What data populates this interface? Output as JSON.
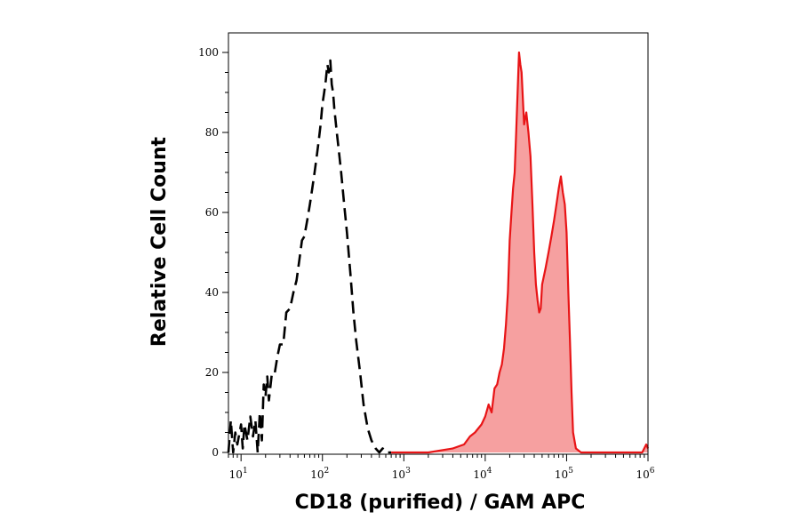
{
  "chart_data": {
    "type": "area",
    "xlabel": "CD18 (purified) / GAM APC",
    "ylabel": "Relative Cell Count",
    "x_scale": "log",
    "xlim": [
      7,
      1000000
    ],
    "ylim": [
      0,
      102
    ],
    "x_ticks": [
      {
        "value": 10,
        "base": "10",
        "exp": "1"
      },
      {
        "value": 100,
        "base": "10",
        "exp": "2"
      },
      {
        "value": 1000,
        "base": "10",
        "exp": "3"
      },
      {
        "value": 10000,
        "base": "10",
        "exp": "4"
      },
      {
        "value": 100000,
        "base": "10",
        "exp": "5"
      },
      {
        "value": 1000000,
        "base": "10",
        "exp": "6"
      }
    ],
    "y_ticks": [
      0,
      20,
      40,
      60,
      80,
      100
    ],
    "grid": false,
    "series": [
      {
        "style": "dashed",
        "color": "#000000",
        "fill": "none",
        "points": [
          [
            7,
            0
          ],
          [
            7.5,
            8
          ],
          [
            8,
            0
          ],
          [
            8.5,
            5
          ],
          [
            9,
            2
          ],
          [
            10,
            7
          ],
          [
            10.5,
            1
          ],
          [
            11,
            7
          ],
          [
            12,
            3
          ],
          [
            13,
            9
          ],
          [
            14,
            4
          ],
          [
            15,
            8
          ],
          [
            16,
            0
          ],
          [
            17,
            10
          ],
          [
            18,
            3
          ],
          [
            19,
            17
          ],
          [
            20,
            14
          ],
          [
            21,
            19
          ],
          [
            22,
            13
          ],
          [
            24,
            20
          ],
          [
            26,
            20
          ],
          [
            28,
            24
          ],
          [
            30,
            27
          ],
          [
            33,
            27
          ],
          [
            36,
            35
          ],
          [
            40,
            36
          ],
          [
            44,
            40
          ],
          [
            48,
            43
          ],
          [
            52,
            48
          ],
          [
            56,
            53
          ],
          [
            60,
            54
          ],
          [
            65,
            58
          ],
          [
            70,
            62
          ],
          [
            75,
            66
          ],
          [
            80,
            70
          ],
          [
            85,
            74
          ],
          [
            90,
            78
          ],
          [
            95,
            82
          ],
          [
            100,
            87
          ],
          [
            105,
            90
          ],
          [
            110,
            93
          ],
          [
            115,
            97
          ],
          [
            120,
            95
          ],
          [
            125,
            98
          ],
          [
            130,
            92
          ],
          [
            135,
            90
          ],
          [
            140,
            86
          ],
          [
            150,
            80
          ],
          [
            160,
            75
          ],
          [
            170,
            70
          ],
          [
            185,
            62
          ],
          [
            200,
            55
          ],
          [
            220,
            45
          ],
          [
            240,
            35
          ],
          [
            260,
            28
          ],
          [
            290,
            20
          ],
          [
            320,
            12
          ],
          [
            360,
            6
          ],
          [
            400,
            3
          ],
          [
            450,
            1
          ],
          [
            500,
            0
          ],
          [
            550,
            1
          ],
          [
            600,
            0
          ],
          [
            700,
            0
          ]
        ]
      },
      {
        "style": "solid",
        "color": "#e81416",
        "fill": "#f6a0a0",
        "points": [
          [
            700,
            0
          ],
          [
            1000,
            0
          ],
          [
            2000,
            0
          ],
          [
            4000,
            1
          ],
          [
            5500,
            2
          ],
          [
            6500,
            4
          ],
          [
            7500,
            5
          ],
          [
            9000,
            7
          ],
          [
            10000,
            9
          ],
          [
            11000,
            12
          ],
          [
            12000,
            10
          ],
          [
            13000,
            16
          ],
          [
            14000,
            17
          ],
          [
            15000,
            20
          ],
          [
            16000,
            22
          ],
          [
            17000,
            26
          ],
          [
            18000,
            32
          ],
          [
            19000,
            40
          ],
          [
            20000,
            53
          ],
          [
            21000,
            60
          ],
          [
            22000,
            66
          ],
          [
            23000,
            70
          ],
          [
            24000,
            80
          ],
          [
            25000,
            90
          ],
          [
            26000,
            100
          ],
          [
            27000,
            97
          ],
          [
            28000,
            95
          ],
          [
            30000,
            82
          ],
          [
            32000,
            85
          ],
          [
            34000,
            80
          ],
          [
            36000,
            74
          ],
          [
            38000,
            62
          ],
          [
            40000,
            50
          ],
          [
            42000,
            42
          ],
          [
            44000,
            38
          ],
          [
            46000,
            35
          ],
          [
            48000,
            36
          ],
          [
            50000,
            42
          ],
          [
            55000,
            46
          ],
          [
            60000,
            50
          ],
          [
            65000,
            54
          ],
          [
            70000,
            58
          ],
          [
            75000,
            62
          ],
          [
            80000,
            66
          ],
          [
            85000,
            69
          ],
          [
            90000,
            65
          ],
          [
            95000,
            62
          ],
          [
            100000,
            55
          ],
          [
            105000,
            40
          ],
          [
            110000,
            28
          ],
          [
            115000,
            15
          ],
          [
            120000,
            5
          ],
          [
            130000,
            1
          ],
          [
            150000,
            0
          ],
          [
            300000,
            0
          ],
          [
            700000,
            0
          ],
          [
            850000,
            0
          ],
          [
            950000,
            2
          ],
          [
            1000000,
            1
          ]
        ]
      }
    ]
  }
}
